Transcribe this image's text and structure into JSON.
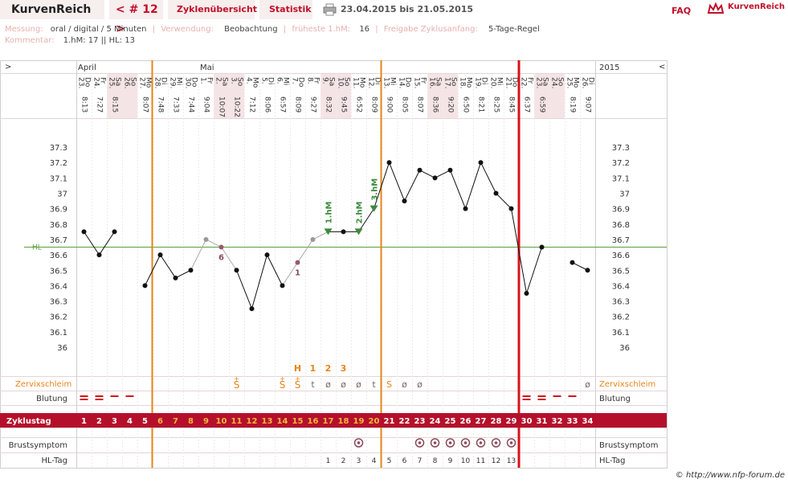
{
  "topbar": {
    "brand": "KurvenReich",
    "cycle_nav": "< # 12 >",
    "tab_overview": "Zyklenübersicht",
    "tab_stats": "Statistik",
    "date_range": "23.04.2015 bis 21.05.2015",
    "faq": "FAQ",
    "logo_text": "KurvenReich"
  },
  "info": {
    "messung_label": "Messung:",
    "messung_value": "oral / digital / 5 Minuten",
    "verwendung_label": "Verwendung:",
    "verwendung_value": "Beobachtung",
    "frueheste_label": "früheste 1.hM:",
    "frueheste_value": "16",
    "freigabe_label": "Freigabe Zyklusanfang:",
    "freigabe_value": "5-Tage-Regel",
    "kommentar_label": "Kommentar:",
    "kommentar_value": "1.hM: 17 || HL: 13"
  },
  "chart_data": {
    "type": "line",
    "header_left_arrow": ">",
    "header_right_arrow": "<",
    "year_label": "2015",
    "month_labels": [
      {
        "day_index": 0,
        "text": "April"
      },
      {
        "day_index": 8,
        "text": "Mai"
      }
    ],
    "days": [
      {
        "date": "23.",
        "wd": "Do",
        "time": "8:13"
      },
      {
        "date": "24.",
        "wd": "Fr",
        "time": "7:27"
      },
      {
        "date": "25.",
        "wd": "Sa",
        "time": "8:15"
      },
      {
        "date": "26.",
        "wd": "So",
        "time": ""
      },
      {
        "date": "27.",
        "wd": "Mo",
        "time": "8:07"
      },
      {
        "date": "28.",
        "wd": "Di",
        "time": "7:48"
      },
      {
        "date": "29.",
        "wd": "Mi",
        "time": "7:33"
      },
      {
        "date": "30.",
        "wd": "Do",
        "time": "7:44"
      },
      {
        "date": "1.",
        "wd": "Fr",
        "time": "9:04"
      },
      {
        "date": "2.",
        "wd": "Sa",
        "time": "10:07"
      },
      {
        "date": "3.",
        "wd": "So",
        "time": "10:22"
      },
      {
        "date": "4.",
        "wd": "Mo",
        "time": "7:12"
      },
      {
        "date": "5.",
        "wd": "Di",
        "time": "8:06"
      },
      {
        "date": "6.",
        "wd": "Mi",
        "time": "6:57"
      },
      {
        "date": "7.",
        "wd": "Do",
        "time": "8:09"
      },
      {
        "date": "8.",
        "wd": "Fr",
        "time": "9:27"
      },
      {
        "date": "9.",
        "wd": "Sa",
        "time": "8:32"
      },
      {
        "date": "10.",
        "wd": "So",
        "time": "9:45"
      },
      {
        "date": "11.",
        "wd": "Mo",
        "time": "6:52"
      },
      {
        "date": "12.",
        "wd": "Di",
        "time": "8:09"
      },
      {
        "date": "13.",
        "wd": "Mi",
        "time": "9:00"
      },
      {
        "date": "14.",
        "wd": "Do",
        "time": "8:05"
      },
      {
        "date": "15.",
        "wd": "Fr",
        "time": "8:07"
      },
      {
        "date": "16.",
        "wd": "Sa",
        "time": "8:36"
      },
      {
        "date": "17.",
        "wd": "So",
        "time": "9:20"
      },
      {
        "date": "18.",
        "wd": "Mo",
        "time": "6:50"
      },
      {
        "date": "19.",
        "wd": "Di",
        "time": "8:21"
      },
      {
        "date": "20.",
        "wd": "Mi",
        "time": "8:25"
      },
      {
        "date": "21.",
        "wd": "Do",
        "time": "8:45"
      },
      {
        "date": "22.",
        "wd": "Fr",
        "time": "6:37"
      },
      {
        "date": "23.",
        "wd": "Sa",
        "time": "6:59"
      },
      {
        "date": "24.",
        "wd": "So",
        "time": ""
      },
      {
        "date": "25.",
        "wd": "Mo",
        "time": "8:19"
      },
      {
        "date": "26.",
        "wd": "Di",
        "time": "9:07"
      }
    ],
    "temperature": [
      36.75,
      36.6,
      36.75,
      null,
      36.4,
      36.6,
      36.45,
      36.5,
      36.7,
      36.65,
      36.5,
      36.25,
      36.6,
      36.4,
      36.55,
      36.7,
      36.75,
      36.75,
      36.75,
      36.9,
      37.2,
      36.95,
      37.15,
      37.1,
      37.15,
      36.9,
      37.2,
      37.0,
      36.9,
      36.35,
      36.65,
      null,
      36.55,
      36.5
    ],
    "gray_points": [
      8,
      9,
      14,
      15
    ],
    "triangle_points": [
      16,
      18,
      19
    ],
    "point_annotations": [
      {
        "day_index": 9,
        "text": "6"
      },
      {
        "day_index": 14,
        "text": "1"
      }
    ],
    "hm_labels": [
      {
        "day_index": 16,
        "text": "1.hM"
      },
      {
        "day_index": 18,
        "text": "2.hM"
      },
      {
        "day_index": 19,
        "text": "3.hM"
      }
    ],
    "y_ticks": [
      37.3,
      37.2,
      37.1,
      37,
      36.9,
      36.8,
      36.7,
      36.6,
      36.5,
      36.4,
      36.3,
      36.2,
      36.1,
      36
    ],
    "y_tick_labels": [
      "37.3",
      "37.2",
      "37.1",
      "37",
      "36.9",
      "36.8",
      "36.7",
      "36.6",
      "36.5",
      "36.4",
      "36.3",
      "36.2",
      "36.1",
      "36"
    ],
    "hl_value": 36.65,
    "hl_label": "HL",
    "orange_lines_after": [
      4,
      19
    ],
    "red_line_after": 28,
    "cervix_markers": [
      {
        "day_index": 14,
        "text": "H"
      },
      {
        "day_index": 15,
        "text": "1"
      },
      {
        "day_index": 16,
        "text": "2"
      },
      {
        "day_index": 17,
        "text": "3"
      }
    ],
    "cervix_label": "Zervixschleim",
    "cervix_values": [
      "",
      "",
      "",
      "",
      "",
      "",
      "",
      "",
      "",
      "",
      "S+",
      "",
      "",
      "S+",
      "S+",
      "t",
      "ø",
      "ø",
      "ø",
      "t",
      "S",
      "ø",
      "ø",
      "",
      "",
      "",
      "",
      "",
      "",
      "",
      "",
      "",
      "",
      "ø"
    ],
    "bleeding_label": "Blutung",
    "bleeding": [
      2,
      2,
      1,
      1,
      0,
      0,
      0,
      0,
      0,
      0,
      0,
      0,
      0,
      0,
      0,
      0,
      0,
      0,
      0,
      0,
      0,
      0,
      0,
      0,
      0,
      0,
      0,
      0,
      0,
      2,
      2,
      1,
      1,
      0
    ],
    "cycle_day_label": "Zyklustag",
    "cycle_days": [
      "1",
      "2",
      "3",
      "4",
      "5",
      "6",
      "7",
      "8",
      "9",
      "10",
      "11",
      "12",
      "13",
      "14",
      "15",
      "16",
      "17",
      "18",
      "19",
      "20",
      "21",
      "22",
      "23",
      "24",
      "25",
      "26",
      "27",
      "28",
      "29",
      "30",
      "31",
      "32",
      "33",
      "34"
    ],
    "breast_label": "Brustsymptom",
    "breast_days": [
      18,
      22,
      23,
      24,
      25,
      26,
      27,
      28
    ],
    "hl_day_label": "HL-Tag",
    "hl_days": [
      "",
      "",
      "",
      "",
      "",
      "",
      "",
      "",
      "",
      "",
      "",
      "",
      "",
      "",
      "",
      "",
      "1",
      "2",
      "3",
      "4",
      "5",
      "6",
      "7",
      "8",
      "9",
      "10",
      "11",
      "12",
      "13",
      "",
      "",
      "",
      "",
      ""
    ],
    "ylim": [
      35.85,
      37.4
    ]
  },
  "credit": "© http://www.nfp-forum.de",
  "colors": {
    "brand_red": "#c0102a",
    "orange": "#e8841a",
    "green": "#4a8a2a",
    "weekend_bg": "#f5e4e6",
    "zyklus_bg": "#b5102b"
  }
}
